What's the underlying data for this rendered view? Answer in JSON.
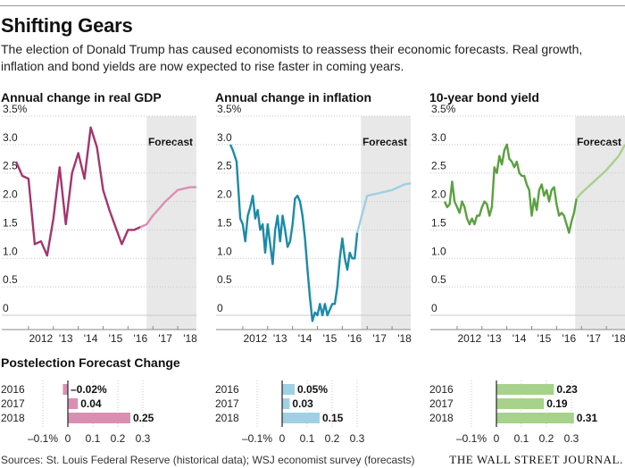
{
  "title": "Shifting Gears",
  "dek": "The election of Donald Trump has caused economists to reassess their economic forecasts. Real growth, inflation and bond yields are now expected to rise faster in coming years.",
  "forecast_label": "Forecast",
  "bar_section_title": "Postelection Forecast Change",
  "source": "Sources: St. Louis Federal Reserve (historical data); WSJ economist survey (forecasts)",
  "publisher": "THE WALL STREET JOURNAL.",
  "colors": {
    "gdp": "#a3356f",
    "gdp_forecast": "#d98fb3",
    "inflation": "#1b8aa9",
    "inflation_forecast": "#9fd0e3",
    "bond": "#5aa13e",
    "bond_forecast": "#a6d28b",
    "forecast_band": "#e8e8e8",
    "grid": "#c8c8c8"
  },
  "chart_data": [
    {
      "type": "line",
      "title": "Annual change in real GDP",
      "xlabel": "",
      "ylabel": "",
      "ylim": [
        0,
        3.5
      ],
      "xlim": [
        2011.5,
        2018.75
      ],
      "y_ticks": [
        "3.5%",
        "3.0",
        "2.5",
        "2.0",
        "1.5",
        "1.0",
        "0.5",
        "0"
      ],
      "x_ticks": [
        "2012",
        "'13",
        "'14",
        "'15",
        "'16",
        "'17",
        "'18"
      ],
      "forecast_start": 2016.75,
      "historical": {
        "x": [
          2011.5,
          2011.75,
          2012.0,
          2012.25,
          2012.5,
          2012.75,
          2013.0,
          2013.25,
          2013.5,
          2013.75,
          2014.0,
          2014.25,
          2014.5,
          2014.75,
          2015.0,
          2015.25,
          2015.5,
          2015.75,
          2016.0,
          2016.25,
          2016.5
        ],
        "y": [
          2.7,
          2.45,
          2.4,
          1.25,
          1.3,
          1.05,
          1.7,
          2.6,
          1.6,
          2.5,
          2.85,
          2.4,
          3.3,
          2.95,
          2.2,
          1.85,
          1.55,
          1.25,
          1.5,
          1.5,
          1.55
        ]
      },
      "forecast": {
        "x": [
          2016.5,
          2016.75,
          2017.0,
          2017.5,
          2017.75,
          2018.0,
          2018.5,
          2018.75
        ],
        "y": [
          1.55,
          1.6,
          1.75,
          2.0,
          2.1,
          2.2,
          2.25,
          2.25
        ]
      }
    },
    {
      "type": "line",
      "title": "Annual change in inflation",
      "xlabel": "",
      "ylabel": "",
      "ylim": [
        0,
        3.5
      ],
      "xlim": [
        2011.5,
        2018.75
      ],
      "y_ticks": [
        "3.5%",
        "3.0",
        "2.5",
        "2.0",
        "1.5",
        "1.0",
        "0.5",
        "0"
      ],
      "x_ticks": [
        "2012",
        "'13",
        "'14",
        "'15",
        "'16",
        "'17",
        "'18"
      ],
      "forecast_start": 2016.75,
      "historical": {
        "x": [
          2011.5,
          2011.6,
          2011.75,
          2011.9,
          2012.0,
          2012.1,
          2012.2,
          2012.3,
          2012.4,
          2012.5,
          2012.6,
          2012.7,
          2012.8,
          2012.9,
          2013.0,
          2013.1,
          2013.2,
          2013.3,
          2013.4,
          2013.5,
          2013.6,
          2013.7,
          2013.8,
          2013.9,
          2014.0,
          2014.1,
          2014.2,
          2014.3,
          2014.4,
          2014.5,
          2014.6,
          2014.7,
          2014.8,
          2014.9,
          2015.0,
          2015.1,
          2015.2,
          2015.3,
          2015.4,
          2015.5,
          2015.6,
          2015.7,
          2015.8,
          2015.9,
          2016.0,
          2016.1,
          2016.2,
          2016.3,
          2016.4,
          2016.5,
          2016.6
        ],
        "y": [
          3.0,
          2.9,
          2.7,
          1.7,
          1.6,
          1.3,
          1.75,
          1.9,
          2.1,
          1.7,
          1.85,
          1.5,
          1.6,
          1.1,
          1.6,
          1.25,
          0.9,
          1.5,
          1.75,
          1.3,
          1.75,
          1.5,
          1.2,
          1.3,
          1.6,
          2.05,
          2.1,
          2.0,
          1.75,
          1.35,
          0.8,
          0.3,
          -0.1,
          0.05,
          0.0,
          0.2,
          0.0,
          0.2,
          0.0,
          0.1,
          0.2,
          0.2,
          0.5,
          1.0,
          1.35,
          1.0,
          0.8,
          1.1,
          1.0,
          1.0,
          1.45
        ]
      },
      "forecast": {
        "x": [
          2016.6,
          2016.75,
          2017.0,
          2017.5,
          2018.0,
          2018.5,
          2018.75
        ],
        "y": [
          1.45,
          1.7,
          2.1,
          2.15,
          2.2,
          2.3,
          2.32
        ]
      }
    },
    {
      "type": "line",
      "title": "10-year bond yield",
      "xlabel": "",
      "ylabel": "",
      "ylim": [
        0,
        3.5
      ],
      "xlim": [
        2011.5,
        2018.75
      ],
      "y_ticks": [
        "3.5%",
        "3.0",
        "2.5",
        "2.0",
        "1.5",
        "1.0",
        "0.5",
        "0"
      ],
      "x_ticks": [
        "2012",
        "'13",
        "'14",
        "'15",
        "'16",
        "'17",
        "'18"
      ],
      "forecast_start": 2016.75,
      "historical": {
        "x": [
          2011.5,
          2011.6,
          2011.7,
          2011.8,
          2011.9,
          2012.0,
          2012.1,
          2012.2,
          2012.3,
          2012.4,
          2012.5,
          2012.6,
          2012.7,
          2012.8,
          2012.9,
          2013.0,
          2013.1,
          2013.2,
          2013.3,
          2013.4,
          2013.5,
          2013.6,
          2013.7,
          2013.8,
          2013.9,
          2014.0,
          2014.1,
          2014.2,
          2014.3,
          2014.4,
          2014.5,
          2014.6,
          2014.7,
          2014.8,
          2014.9,
          2015.0,
          2015.1,
          2015.2,
          2015.3,
          2015.4,
          2015.5,
          2015.6,
          2015.7,
          2015.8,
          2015.9,
          2016.0,
          2016.1,
          2016.2,
          2016.3,
          2016.4,
          2016.5,
          2016.6,
          2016.7,
          2016.8
        ],
        "y": [
          2.0,
          1.9,
          1.95,
          2.35,
          2.0,
          1.9,
          1.8,
          2.0,
          1.9,
          1.7,
          1.6,
          1.7,
          1.6,
          1.75,
          1.75,
          1.9,
          2.0,
          1.95,
          1.75,
          1.9,
          2.6,
          2.5,
          2.8,
          2.65,
          2.9,
          3.0,
          2.75,
          2.7,
          2.6,
          2.7,
          2.5,
          2.45,
          2.45,
          2.3,
          2.2,
          1.75,
          2.05,
          1.85,
          2.2,
          2.3,
          2.1,
          2.2,
          2.0,
          2.2,
          2.25,
          1.95,
          1.75,
          1.8,
          1.75,
          1.6,
          1.45,
          1.65,
          1.8,
          2.05
        ]
      },
      "forecast": {
        "x": [
          2016.8,
          2017.0,
          2017.5,
          2018.0,
          2018.5,
          2018.75
        ],
        "y": [
          2.05,
          2.15,
          2.35,
          2.55,
          2.8,
          3.0
        ]
      }
    },
    {
      "type": "bar",
      "orientation": "horizontal",
      "categories": [
        "2016",
        "2017",
        "2018"
      ],
      "values": [
        -0.02,
        0.04,
        0.25
      ],
      "value_labels": [
        "–0.02%",
        "0.04",
        "0.25"
      ],
      "xlim": [
        -0.15,
        0.35
      ],
      "x_ticks": [
        "–0.1%",
        "0",
        "0.1",
        "0.2",
        "0.3"
      ]
    },
    {
      "type": "bar",
      "orientation": "horizontal",
      "categories": [
        "2016",
        "2017",
        "2018"
      ],
      "values": [
        0.05,
        0.03,
        0.15
      ],
      "value_labels": [
        "0.05%",
        "0.03",
        "0.15"
      ],
      "xlim": [
        -0.15,
        0.35
      ],
      "x_ticks": [
        "–0.1%",
        "0",
        "0.1",
        "0.2",
        "0.3"
      ]
    },
    {
      "type": "bar",
      "orientation": "horizontal",
      "categories": [
        "2016",
        "2017",
        "2018"
      ],
      "values": [
        0.23,
        0.19,
        0.31
      ],
      "value_labels": [
        "0.23",
        "0.19",
        "0.31"
      ],
      "xlim": [
        -0.15,
        0.35
      ],
      "x_ticks": [
        "–0.1%",
        "0",
        "0.1",
        "0.2",
        "0.3"
      ]
    }
  ]
}
